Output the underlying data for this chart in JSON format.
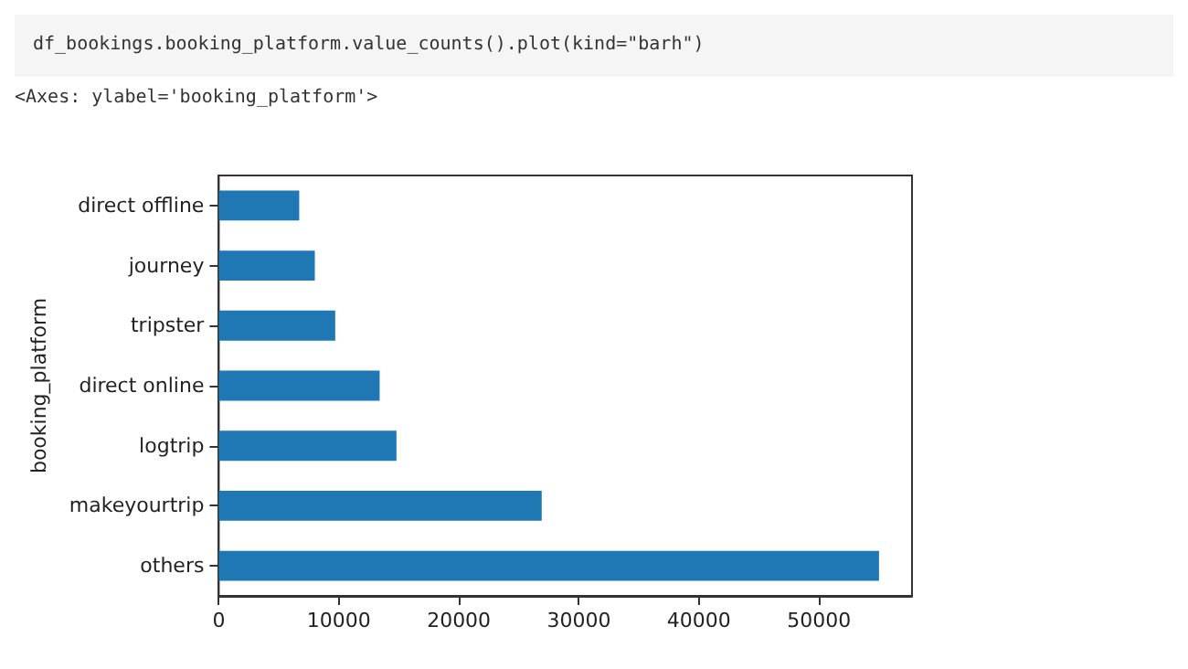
{
  "chart_data": {
    "type": "bar",
    "orientation": "horizontal",
    "ylabel": "booking_platform",
    "annotations": [
      "df_bookings.booking_platform.value_counts().plot(kind=\"barh\")",
      "<Axes: ylabel='booking_platform'>"
    ],
    "categories": [
      "direct offline",
      "journey",
      "tripster",
      "direct online",
      "logtrip",
      "makeyourtrip",
      "others"
    ],
    "values": [
      6700,
      8000,
      9700,
      13400,
      14800,
      26900,
      55000
    ],
    "color": "#1f77b4",
    "xlim": [
      0,
      57750
    ],
    "xticks": [
      0,
      10000,
      20000,
      30000,
      40000,
      50000
    ]
  }
}
